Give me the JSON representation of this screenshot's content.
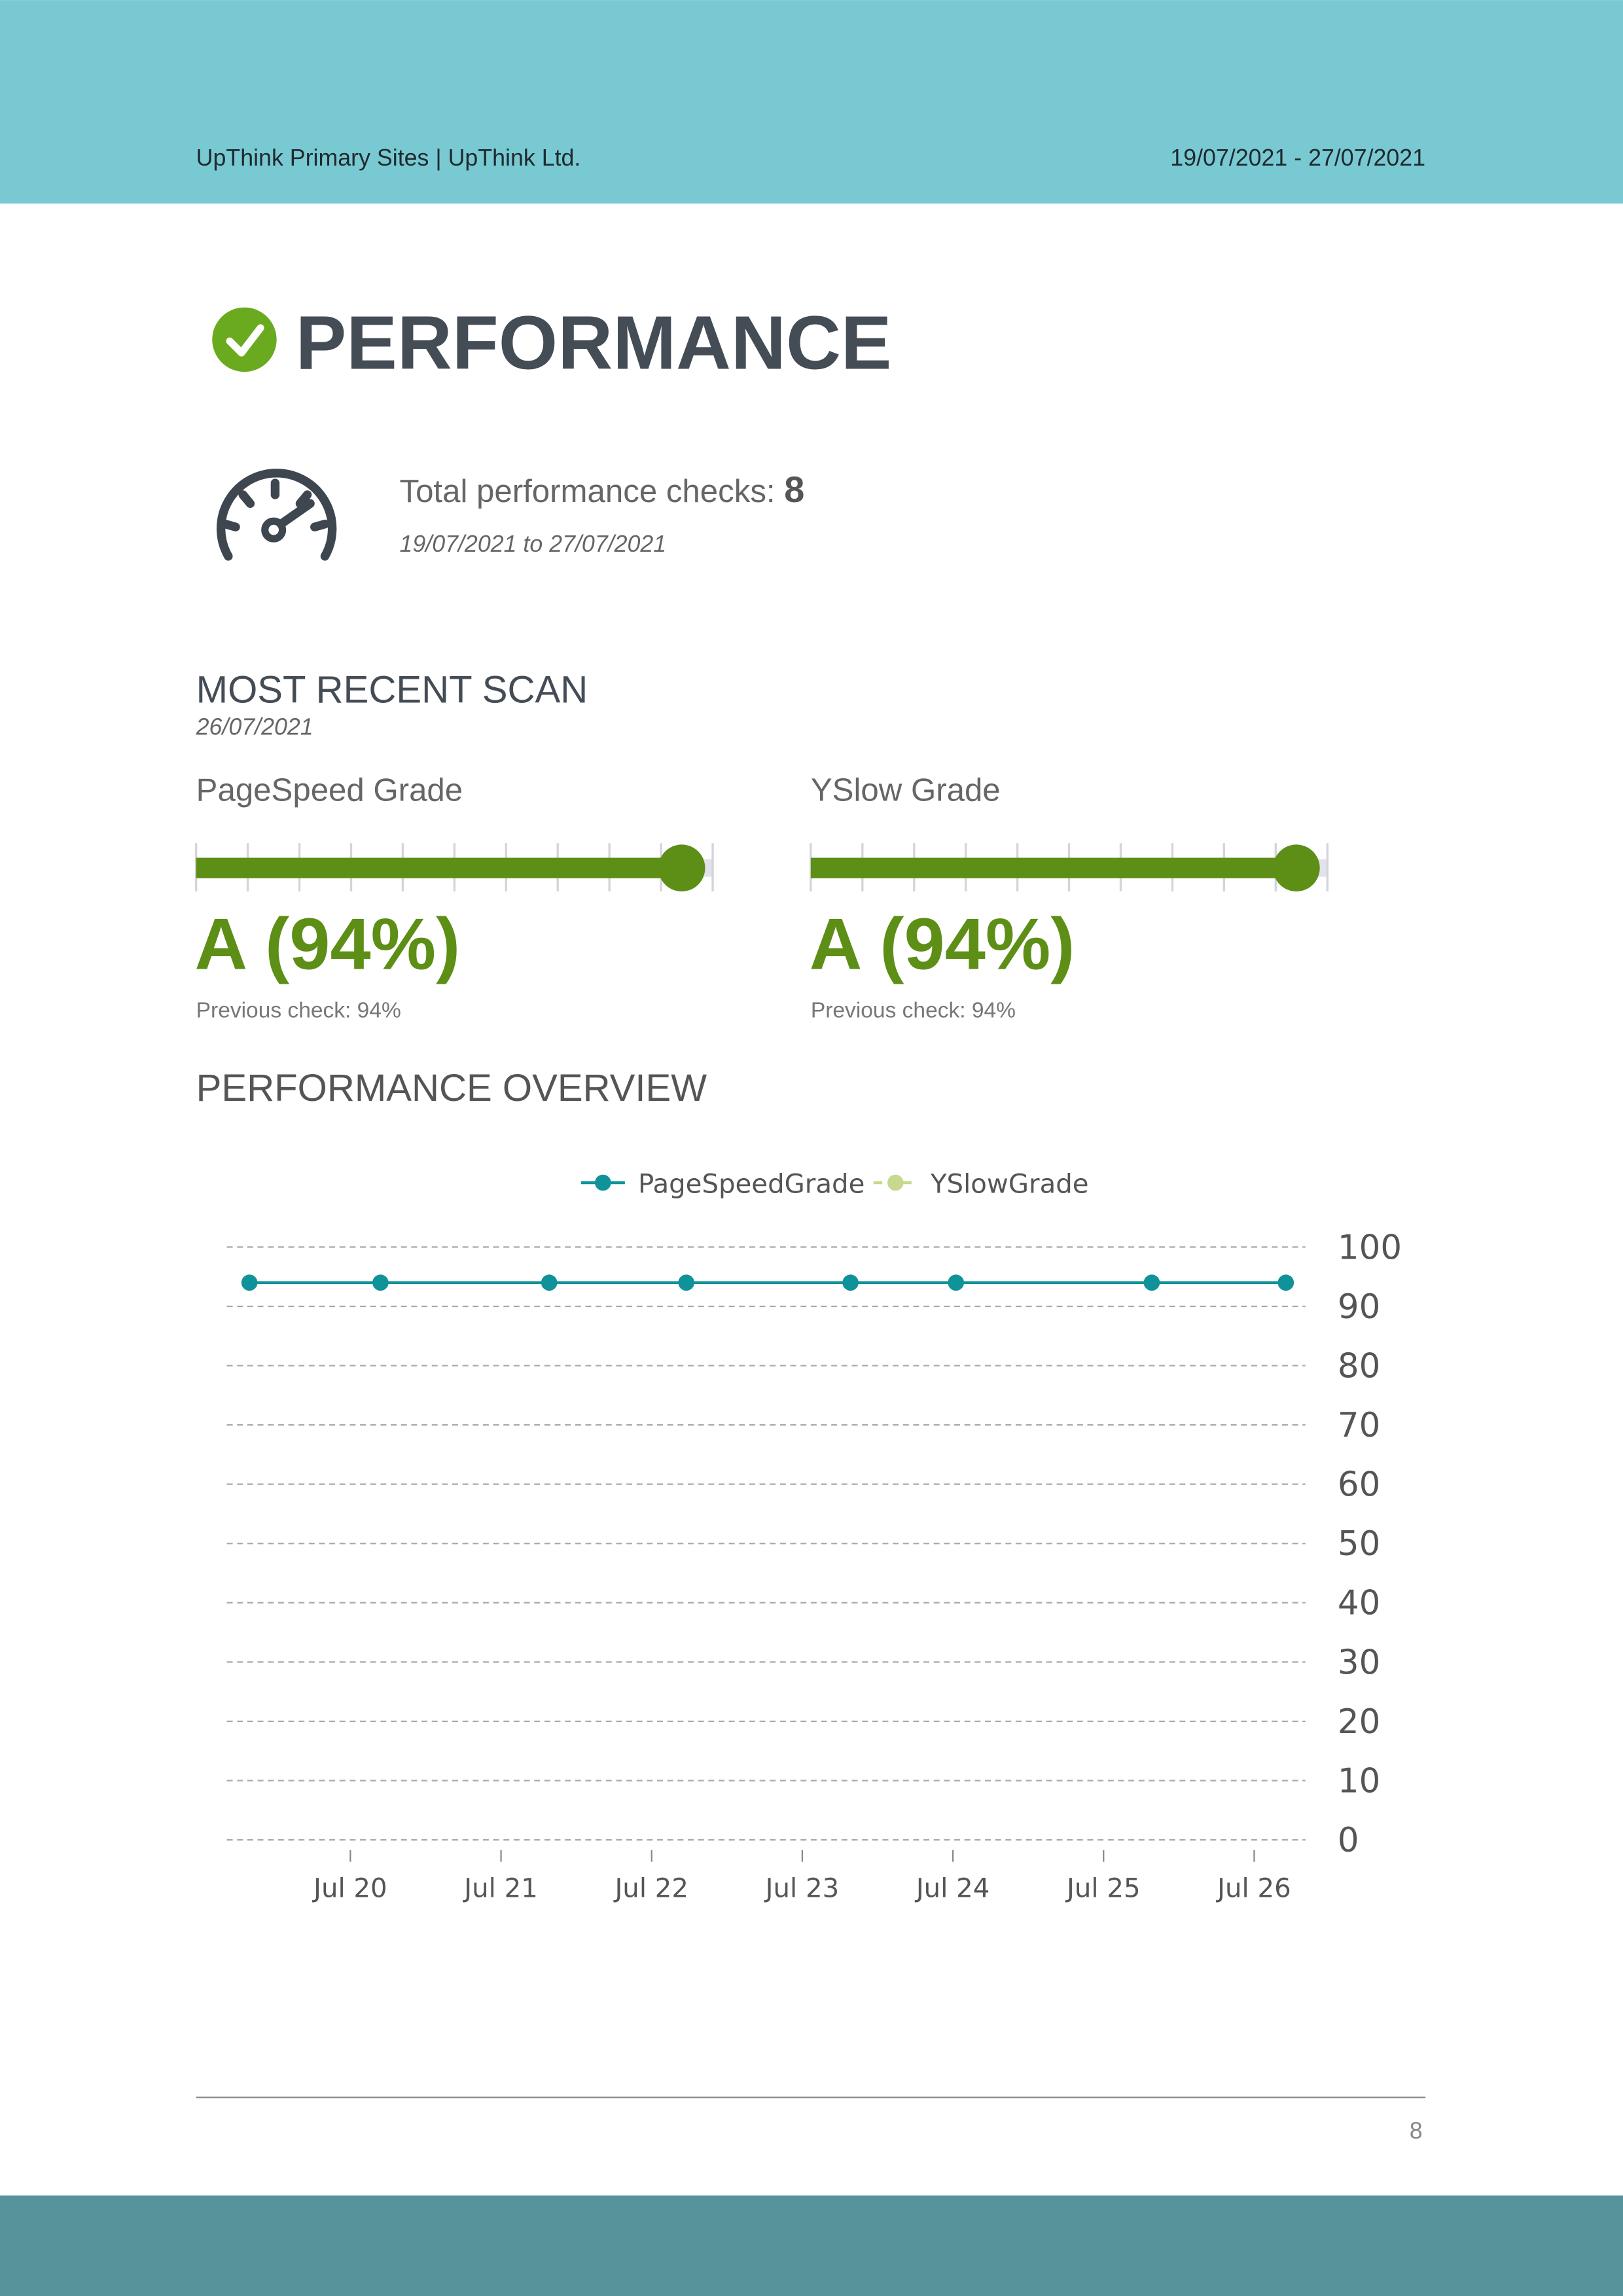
{
  "header": {
    "site": "UpThink Primary Sites | UpThink Ltd.",
    "period": "19/07/2021 - 27/07/2021"
  },
  "title": "PERFORMANCE",
  "summary": {
    "label": "Total performance checks:",
    "count": 8,
    "range": "19/07/2021 to 27/07/2021"
  },
  "recent": {
    "heading": "MOST RECENT SCAN",
    "date": "26/07/2021",
    "grades": [
      {
        "title": "PageSpeed Grade",
        "score": 94,
        "score_label": "A (94%)",
        "range": [
          0,
          100
        ],
        "ticks": [
          0,
          10,
          20,
          30,
          40,
          50,
          60,
          70,
          80,
          90,
          100
        ],
        "previous": "Previous check: 94%"
      },
      {
        "title": "YSlow Grade",
        "score": 94,
        "score_label": "A (94%)",
        "range": [
          0,
          100
        ],
        "ticks": [
          0,
          10,
          20,
          30,
          40,
          50,
          60,
          70,
          80,
          90,
          100
        ],
        "previous": "Previous check: 94%"
      }
    ]
  },
  "overview_heading": "PERFORMANCE OVERVIEW",
  "chart_data": {
    "type": "line",
    "x": [
      19.33,
      20.2,
      21.32,
      22.23,
      23.32,
      24.02,
      25.32,
      26.21
    ],
    "series": [
      {
        "name": "PageSpeedGrade",
        "color": "#10929b",
        "values": [
          94,
          94,
          94,
          94,
          94,
          94,
          94,
          94
        ]
      },
      {
        "name": "YSlowGrade",
        "color": "#c6d98f",
        "values": [
          94,
          94,
          94,
          94,
          94,
          94,
          94,
          94
        ]
      }
    ],
    "xlim": [
      19.18,
      26.34
    ],
    "xticks": [
      {
        "value": 20,
        "label": "Jul 20"
      },
      {
        "value": 21,
        "label": "Jul 21"
      },
      {
        "value": 22,
        "label": "Jul 22"
      },
      {
        "value": 23,
        "label": "Jul 23"
      },
      {
        "value": 24,
        "label": "Jul 24"
      },
      {
        "value": 25,
        "label": "Jul 25"
      },
      {
        "value": 26,
        "label": "Jul 26"
      }
    ],
    "ylim": [
      0,
      100
    ],
    "yticks": [
      0,
      10,
      20,
      30,
      40,
      50,
      60,
      70,
      80,
      90,
      100
    ],
    "grid": true,
    "legend": "top"
  },
  "footer": {
    "page": 8
  }
}
